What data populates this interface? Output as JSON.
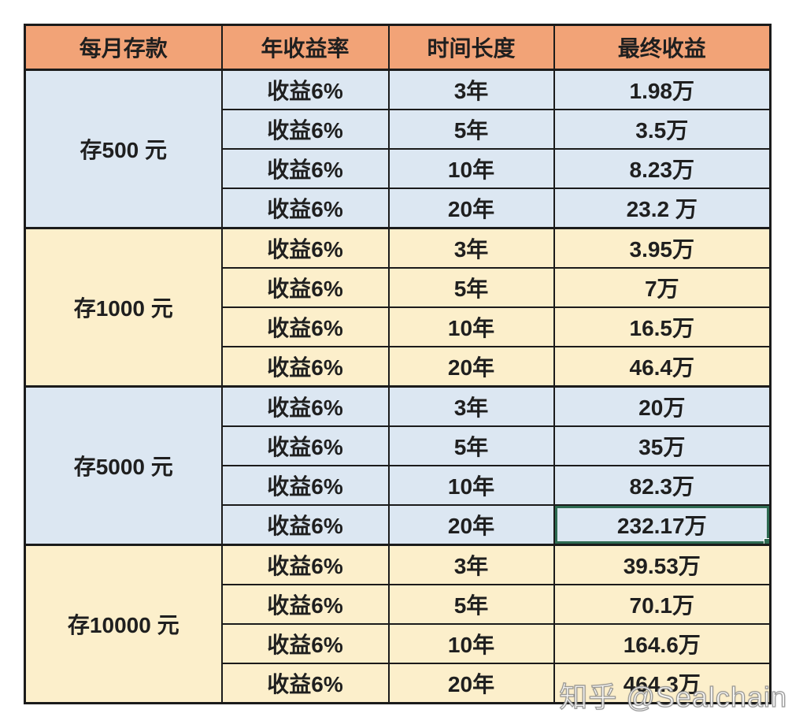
{
  "colors": {
    "header_bg": "#f2a377",
    "group_bg_blue": "#dce7f2",
    "group_bg_yellow": "#fcefcb",
    "border": "#1b1b1b",
    "selection_green": "#2e6b52",
    "text": "#1f1f1f"
  },
  "table": {
    "headers": [
      "每月存款",
      "年收益率",
      "时间长度",
      "最终收益"
    ],
    "groups": [
      {
        "deposit": "存500 元",
        "rows": [
          {
            "yield": "收益6%",
            "duration": "3年",
            "result": "1.98万"
          },
          {
            "yield": "收益6%",
            "duration": "5年",
            "result": "3.5万"
          },
          {
            "yield": "收益6%",
            "duration": "10年",
            "result": "8.23万"
          },
          {
            "yield": "收益6%",
            "duration": "20年",
            "result": "23.2 万"
          }
        ]
      },
      {
        "deposit": "存1000 元",
        "rows": [
          {
            "yield": "收益6%",
            "duration": "3年",
            "result": "3.95万"
          },
          {
            "yield": "收益6%",
            "duration": "5年",
            "result": "7万"
          },
          {
            "yield": "收益6%",
            "duration": "10年",
            "result": "16.5万"
          },
          {
            "yield": "收益6%",
            "duration": "20年",
            "result": "46.4万"
          }
        ]
      },
      {
        "deposit": "存5000 元",
        "rows": [
          {
            "yield": "收益6%",
            "duration": "3年",
            "result": "20万"
          },
          {
            "yield": "收益6%",
            "duration": "5年",
            "result": "35万"
          },
          {
            "yield": "收益6%",
            "duration": "10年",
            "result": "82.3万"
          },
          {
            "yield": "收益6%",
            "duration": "20年",
            "result": "232.17万"
          }
        ]
      },
      {
        "deposit": "存10000 元",
        "rows": [
          {
            "yield": "收益6%",
            "duration": "3年",
            "result": "39.53万"
          },
          {
            "yield": "收益6%",
            "duration": "5年",
            "result": "70.1万"
          },
          {
            "yield": "收益6%",
            "duration": "10年",
            "result": "164.6万"
          },
          {
            "yield": "收益6%",
            "duration": "20年",
            "result": "464.3万"
          }
        ]
      }
    ]
  },
  "watermark": "知乎 @Sealchain"
}
